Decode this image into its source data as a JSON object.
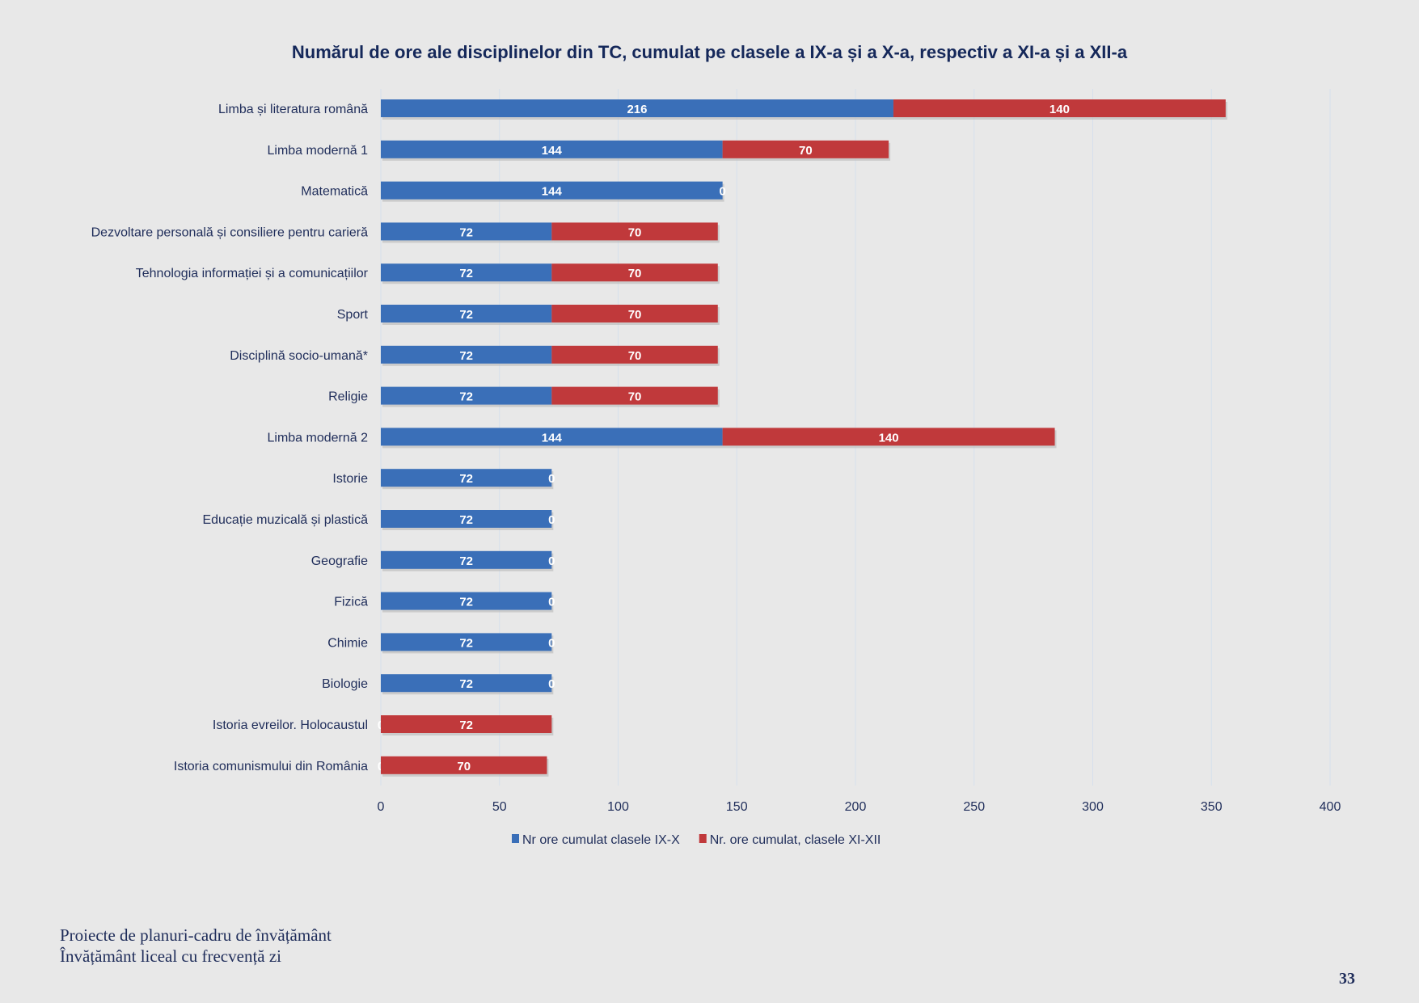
{
  "chart_data": {
    "type": "bar",
    "orientation": "horizontal",
    "stacked": true,
    "title": "Numărul de ore ale disciplinelor din TC, cumulat pe clasele a IX-a și a X-a, respectiv a XI-a și a XII-a",
    "categories": [
      "Limba și literatura română",
      "Limba modernă 1",
      "Matematică",
      "Dezvoltare personală și consiliere pentru carieră",
      "Tehnologia informației și a comunicațiilor",
      "Sport",
      "Disciplină socio-umană*",
      "Religie",
      "Limba modernă 2",
      "Istorie",
      "Educație muzicală și plastică",
      "Geografie",
      "Fizică",
      "Chimie",
      "Biologie",
      "Istoria evreilor. Holocaustul",
      "Istoria comunismului din România"
    ],
    "series": [
      {
        "name": "Nr ore cumulat clasele IX-X",
        "color": "#3a6fb8",
        "values": [
          216,
          144,
          144,
          72,
          72,
          72,
          72,
          72,
          144,
          72,
          72,
          72,
          72,
          72,
          72,
          0,
          0
        ]
      },
      {
        "name": "Nr. ore cumulat, clasele XI-XII",
        "color": "#c0393b",
        "values": [
          140,
          70,
          0,
          70,
          70,
          70,
          70,
          70,
          140,
          0,
          0,
          0,
          0,
          0,
          0,
          72,
          70
        ]
      }
    ],
    "xlim": [
      0,
      400
    ],
    "xticks": [
      0,
      50,
      100,
      150,
      200,
      250,
      300,
      350,
      400
    ],
    "grid": true,
    "legend": "bottom"
  },
  "footer": {
    "line1": "Proiecte de planuri-cadru de învățământ",
    "line2": "Învățământ liceal cu frecvență zi",
    "page_number": "33"
  }
}
